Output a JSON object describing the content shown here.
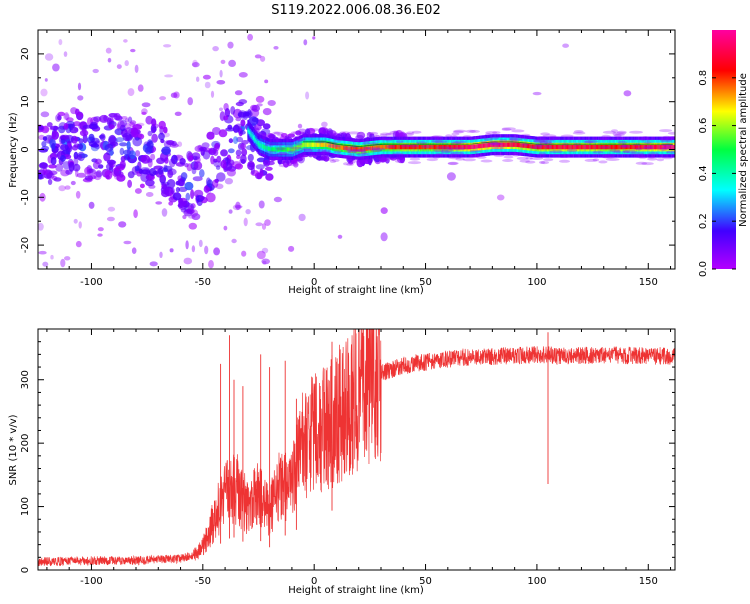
{
  "title": "S119.2022.006.08.36.E02",
  "colorbar": {
    "label": "Normalized spectral amplitude",
    "ticks": [
      "0.0",
      "0.2",
      "0.4",
      "0.6",
      "0.8"
    ],
    "tick_values": [
      0.0,
      0.2,
      0.4,
      0.6,
      0.8
    ],
    "range": [
      0.0,
      1.0
    ],
    "colormap": "gist_rainbow_reversed (violet-blue-cyan-green-yellow-red-magenta)"
  },
  "chart_data": [
    {
      "type": "heatmap",
      "title": "",
      "xlabel": "Height of straight line (km)",
      "ylabel": "Frequency (Hz)",
      "xlim": [
        -124,
        162
      ],
      "ylim": [
        -25,
        25
      ],
      "xticks": [
        -100,
        -50,
        0,
        50,
        100,
        150
      ],
      "xtick_labels": [
        "-100",
        "-50",
        "0",
        "50",
        "100",
        "150"
      ],
      "yticks": [
        -20,
        -10,
        0,
        10,
        20
      ],
      "ytick_labels": [
        "-20",
        "-10",
        "0",
        "10",
        "20"
      ],
      "ridge": {
        "description": "frequency of spectral peak along height",
        "x": [
          -124,
          -110,
          -100,
          -90,
          -80,
          -70,
          -65,
          -60,
          -55,
          -50,
          -45,
          -40,
          -35,
          -30,
          -25,
          -20,
          -15,
          -10,
          -5,
          0,
          5,
          10,
          20,
          30,
          40,
          50,
          60,
          70,
          80,
          90,
          100,
          110,
          120,
          130,
          140,
          150,
          162
        ],
        "y": [
          -2,
          2,
          0,
          1,
          -1,
          0,
          -4,
          -7,
          -8,
          -6,
          -3,
          1,
          3,
          4,
          1,
          0,
          0,
          0,
          1,
          1,
          1,
          0.5,
          0,
          0.5,
          0.5,
          0.5,
          0.5,
          0.5,
          1,
          1,
          0.5,
          0.5,
          0.5,
          0.5,
          0.5,
          0.5,
          0.5
        ],
        "amplitude": [
          0.1,
          0.15,
          0.12,
          0.13,
          0.1,
          0.12,
          0.15,
          0.2,
          0.2,
          0.22,
          0.25,
          0.3,
          0.35,
          0.35,
          0.4,
          0.45,
          0.5,
          0.55,
          0.6,
          0.65,
          0.7,
          0.75,
          0.8,
          0.75,
          0.85,
          0.8,
          0.85,
          0.95,
          0.95,
          0.9,
          0.85,
          0.9,
          0.9,
          0.85,
          0.85,
          0.9,
          0.95
        ]
      }
    },
    {
      "type": "line",
      "title": "",
      "xlabel": "Height of straight line (km)",
      "ylabel": "SNR (10 * v/v)",
      "xlim": [
        -124,
        162
      ],
      "ylim": [
        0,
        380
      ],
      "xticks": [
        -100,
        -50,
        0,
        50,
        100,
        150
      ],
      "xtick_labels": [
        "-100",
        "-50",
        "0",
        "50",
        "100",
        "150"
      ],
      "yticks": [
        0,
        100,
        200,
        300
      ],
      "ytick_labels": [
        "0",
        "100",
        "200",
        "300"
      ],
      "color": "#ee3333",
      "envelope": {
        "x": [
          -124,
          -100,
          -80,
          -60,
          -55,
          -50,
          -45,
          -40,
          -35,
          -30,
          -25,
          -20,
          -15,
          -10,
          -5,
          0,
          5,
          10,
          15,
          20,
          25,
          30,
          40,
          50,
          60,
          70,
          80,
          90,
          100,
          110,
          120,
          130,
          140,
          150,
          162
        ],
        "y": [
          10,
          12,
          12,
          15,
          20,
          35,
          80,
          120,
          130,
          100,
          120,
          90,
          140,
          130,
          200,
          215,
          225,
          240,
          260,
          280,
          295,
          310,
          322,
          328,
          333,
          336,
          337,
          338,
          340,
          338,
          339,
          339,
          338,
          338,
          337
        ]
      },
      "spikes": {
        "x": [
          -42,
          -38,
          -36,
          -32,
          -24,
          -20,
          -13,
          -8,
          8,
          105
        ],
        "y": [
          325,
          370,
          300,
          290,
          340,
          320,
          330,
          270,
          360,
          375
        ]
      }
    }
  ]
}
